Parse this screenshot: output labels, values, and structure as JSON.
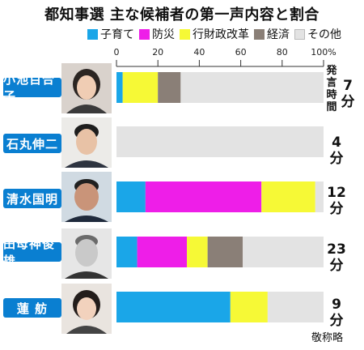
{
  "title": "都知事選 主な候補者の第一声内容と割合",
  "note": "敬称略",
  "colors": {
    "childcare": "#1aa6e8",
    "disaster": "#ee1ee8",
    "reform": "#f6f936",
    "economy": "#8a7f77",
    "other": "#e3e3e3"
  },
  "chart_data": {
    "type": "bar",
    "orientation": "horizontal",
    "stacked": true,
    "title": "都知事選 主な候補者の第一声内容と割合",
    "xlim": [
      0,
      100
    ],
    "x_ticks": [
      "0",
      "20",
      "40",
      "60",
      "80",
      "100%"
    ],
    "axis_caption": "発言時間",
    "categories": [
      "小池百合子",
      "石丸伸二",
      "清水国明",
      "田母神俊雄",
      "蓮 舫"
    ],
    "speech_time": [
      "7分",
      "4分",
      "12分",
      "23分",
      "9分"
    ],
    "series": [
      {
        "name": "子育て",
        "values": [
          3,
          0,
          14,
          10,
          55
        ]
      },
      {
        "name": "防災",
        "values": [
          0,
          0,
          56,
          24,
          0
        ]
      },
      {
        "name": "行財政改革",
        "values": [
          17,
          0,
          26,
          10,
          18
        ]
      },
      {
        "name": "経済",
        "values": [
          11,
          0,
          0,
          17,
          0
        ]
      },
      {
        "name": "その他",
        "values": [
          69,
          100,
          4,
          39,
          27
        ]
      }
    ]
  }
}
